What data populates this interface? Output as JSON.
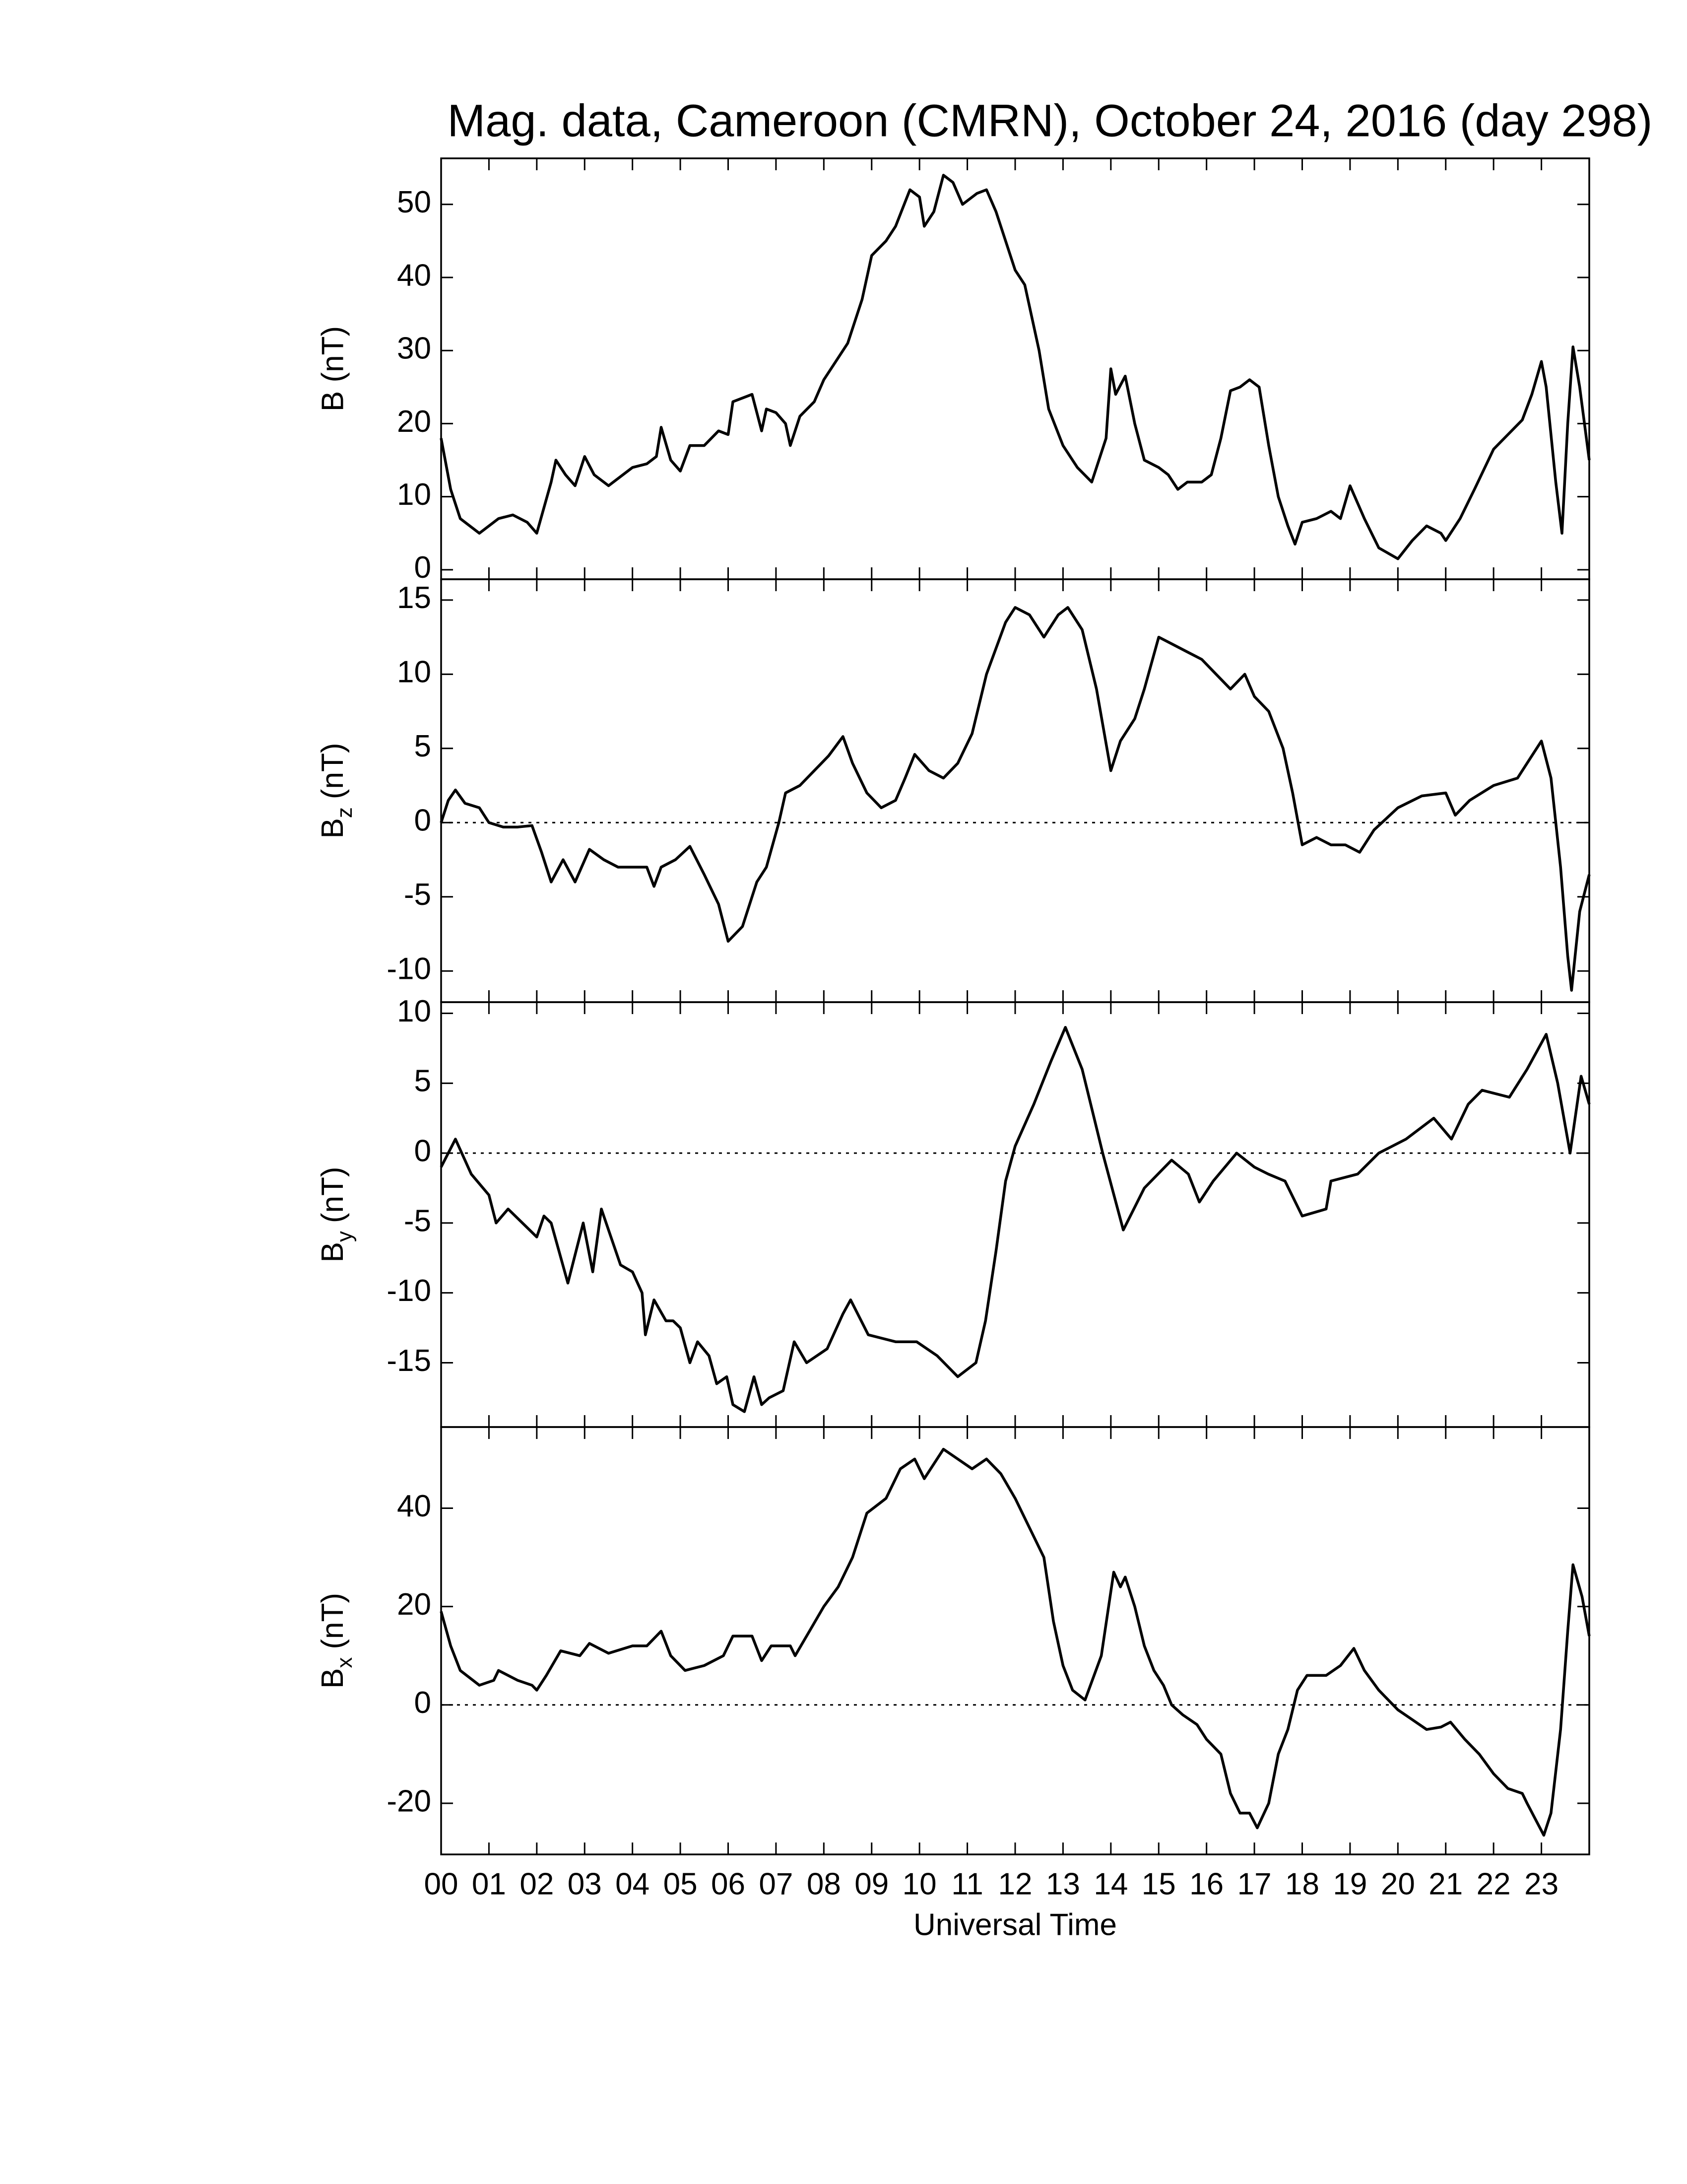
{
  "chart_data": [
    {
      "type": "line",
      "title": "Mag. data, Cameroon (CMRN), October 24, 2016 (day 298)",
      "ylabel": "B (nT)",
      "color": "#000000",
      "xlim": [
        0,
        24
      ],
      "xticks": [
        0,
        1,
        2,
        3,
        4,
        5,
        6,
        7,
        8,
        9,
        10,
        11,
        12,
        13,
        14,
        15,
        16,
        17,
        18,
        19,
        20,
        21,
        22,
        23
      ],
      "ylim": [
        -1.3,
        56.3
      ],
      "yticks": [
        0,
        10,
        20,
        30,
        40,
        50
      ],
      "x": [
        0,
        0.2,
        0.4,
        0.8,
        1.2,
        1.5,
        1.8,
        2.0,
        2.3,
        2.4,
        2.6,
        2.8,
        3.0,
        3.2,
        3.5,
        4.0,
        4.3,
        4.5,
        4.6,
        4.8,
        5.0,
        5.2,
        5.5,
        5.8,
        6.0,
        6.1,
        6.5,
        6.7,
        6.8,
        7.0,
        7.2,
        7.3,
        7.5,
        7.8,
        8.0,
        8.3,
        8.5,
        8.8,
        9.0,
        9.3,
        9.5,
        9.8,
        10.0,
        10.1,
        10.3,
        10.5,
        10.7,
        10.9,
        11.2,
        11.4,
        11.6,
        11.8,
        12.0,
        12.2,
        12.5,
        12.7,
        13.0,
        13.3,
        13.6,
        13.9,
        14.0,
        14.1,
        14.3,
        14.5,
        14.7,
        15.0,
        15.2,
        15.4,
        15.6,
        15.9,
        16.1,
        16.3,
        16.5,
        16.7,
        16.9,
        17.1,
        17.3,
        17.5,
        17.7,
        17.85,
        18.0,
        18.3,
        18.6,
        18.8,
        19.0,
        19.3,
        19.6,
        20.0,
        20.3,
        20.6,
        20.9,
        21.0,
        21.3,
        21.6,
        22.0,
        22.3,
        22.6,
        22.8,
        23.0,
        23.1,
        23.3,
        23.43,
        23.55,
        23.66,
        23.8,
        24.0
      ],
      "values": [
        18,
        11,
        7,
        5,
        7,
        7.5,
        6.5,
        5,
        12,
        15,
        13,
        11.5,
        15.5,
        13,
        11.5,
        14,
        14.5,
        15.5,
        19.5,
        15,
        13.5,
        17,
        17,
        19,
        18.5,
        23,
        24,
        19,
        22,
        21.5,
        20,
        17,
        21,
        23,
        26,
        29,
        31,
        37,
        43,
        45,
        47,
        52,
        51,
        47,
        49,
        54,
        53,
        50,
        51.5,
        52,
        49,
        45,
        41,
        39,
        30,
        22,
        17,
        14,
        12,
        18,
        27.5,
        24,
        26.5,
        20,
        15,
        14,
        13,
        11,
        12,
        12,
        13,
        18,
        24.5,
        25,
        26,
        25,
        17,
        10,
        6,
        3.5,
        6.5,
        7,
        8,
        7,
        11.5,
        7,
        3,
        1.5,
        4,
        6,
        5,
        4,
        7,
        11,
        16.5,
        18.5,
        20.5,
        24,
        28.5,
        25,
        12,
        5,
        20,
        30.5,
        25,
        15
      ]
    },
    {
      "type": "line",
      "ylabel": "B",
      "ylabel_subscript": "z",
      "ylabel_unit": "(nT)",
      "color": "#000000",
      "zero_line": true,
      "xlim": [
        0,
        24
      ],
      "xticks": [
        0,
        1,
        2,
        3,
        4,
        5,
        6,
        7,
        8,
        9,
        10,
        11,
        12,
        13,
        14,
        15,
        16,
        17,
        18,
        19,
        20,
        21,
        22,
        23
      ],
      "ylim": [
        -12.1,
        16.4
      ],
      "yticks": [
        -10,
        -5,
        0,
        5,
        10,
        15
      ],
      "x": [
        0,
        0.15,
        0.3,
        0.5,
        0.8,
        1.0,
        1.3,
        1.6,
        1.9,
        2.1,
        2.3,
        2.55,
        2.8,
        3.1,
        3.4,
        3.7,
        4.0,
        4.3,
        4.45,
        4.6,
        4.9,
        5.2,
        5.5,
        5.8,
        6.0,
        6.3,
        6.6,
        6.8,
        7.06,
        7.2,
        7.5,
        7.8,
        8.1,
        8.4,
        8.6,
        8.9,
        9.2,
        9.5,
        9.7,
        9.9,
        10.2,
        10.5,
        10.8,
        11.1,
        11.4,
        11.8,
        12.0,
        12.3,
        12.6,
        12.9,
        13.1,
        13.4,
        13.7,
        14.0,
        14.2,
        14.5,
        14.7,
        15.0,
        15.3,
        15.6,
        15.9,
        16.2,
        16.5,
        16.8,
        17.0,
        17.3,
        17.6,
        17.8,
        18.0,
        18.3,
        18.6,
        18.9,
        19.2,
        19.5,
        20.0,
        20.5,
        21.0,
        21.2,
        21.5,
        22.0,
        22.5,
        22.8,
        23.0,
        23.2,
        23.4,
        23.55,
        23.63,
        23.8,
        24.0
      ],
      "values": [
        0,
        1.5,
        2.2,
        1.3,
        1,
        0,
        -0.3,
        -0.3,
        -0.2,
        -2,
        -4,
        -2.5,
        -4,
        -1.8,
        -2.5,
        -3,
        -3,
        -3,
        -4.3,
        -3,
        -2.5,
        -1.6,
        -3.5,
        -5.5,
        -8,
        -7,
        -4,
        -3,
        0,
        2,
        2.5,
        3.5,
        4.5,
        5.8,
        4,
        2,
        1,
        1.5,
        3,
        4.6,
        3.5,
        3,
        4,
        6,
        10,
        13.5,
        14.5,
        14,
        12.5,
        14,
        14.5,
        13,
        9,
        3.5,
        5.5,
        7,
        9,
        12.5,
        12,
        11.5,
        11,
        10,
        9,
        10,
        8.5,
        7.5,
        5,
        2,
        -1.5,
        -1,
        -1.5,
        -1.5,
        -2,
        -0.5,
        1,
        1.8,
        2,
        0.5,
        1.5,
        2.5,
        3,
        4.5,
        5.5,
        3,
        -3,
        -9,
        -11.3,
        -6,
        -3.5
      ]
    },
    {
      "type": "line",
      "ylabel": "B",
      "ylabel_subscript": "y",
      "ylabel_unit": "(nT)",
      "color": "#000000",
      "zero_line": true,
      "xlim": [
        0,
        24
      ],
      "xticks": [
        0,
        1,
        2,
        3,
        4,
        5,
        6,
        7,
        8,
        9,
        10,
        11,
        12,
        13,
        14,
        15,
        16,
        17,
        18,
        19,
        20,
        21,
        22,
        23
      ],
      "ylim": [
        -19.6,
        10.8
      ],
      "yticks": [
        -15,
        -10,
        -5,
        0,
        5,
        10
      ],
      "x": [
        0,
        0.3,
        0.63,
        1.0,
        1.15,
        1.4,
        1.7,
        2.0,
        2.15,
        2.3,
        2.65,
        2.97,
        3.17,
        3.35,
        3.55,
        3.75,
        4.0,
        4.2,
        4.27,
        4.45,
        4.7,
        4.85,
        5.0,
        5.2,
        5.36,
        5.6,
        5.76,
        5.97,
        6.1,
        6.34,
        6.54,
        6.7,
        6.86,
        7.15,
        7.38,
        7.64,
        8.07,
        8.4,
        8.56,
        8.93,
        9.5,
        9.94,
        10.37,
        10.8,
        11.18,
        11.38,
        11.6,
        11.8,
        12.0,
        12.39,
        12.74,
        13.05,
        13.4,
        13.83,
        14.26,
        14.7,
        15.27,
        15.62,
        15.85,
        16.14,
        16.63,
        17.0,
        17.29,
        17.64,
        18.0,
        18.5,
        18.6,
        19.16,
        19.6,
        20.17,
        20.75,
        21.12,
        21.47,
        21.76,
        22.33,
        22.7,
        23.1,
        23.34,
        23.6,
        23.83,
        24.0
      ],
      "values": [
        -1,
        1,
        -1.5,
        -3,
        -5,
        -4,
        -5,
        -6,
        -4.5,
        -5,
        -9.3,
        -5,
        -8.5,
        -4,
        -6,
        -8,
        -8.5,
        -10,
        -13,
        -10.5,
        -12,
        -12,
        -12.5,
        -15,
        -13.5,
        -14.5,
        -16.5,
        -16,
        -18,
        -18.5,
        -16,
        -18,
        -17.5,
        -17,
        -13.5,
        -15,
        -14,
        -11.5,
        -10.5,
        -13,
        -13.5,
        -13.5,
        -14.5,
        -16,
        -15,
        -12,
        -7,
        -2,
        0.5,
        3.5,
        6.5,
        9,
        6,
        0,
        -5.5,
        -2.5,
        -0.5,
        -1.5,
        -3.5,
        -2,
        0,
        -1,
        -1.5,
        -2,
        -4.5,
        -4,
        -2,
        -1.5,
        0,
        1,
        2.5,
        1,
        3.5,
        4.5,
        4,
        6,
        8.5,
        5,
        0,
        5.5,
        3.5
      ]
    },
    {
      "type": "line",
      "ylabel": "B",
      "ylabel_subscript": "x",
      "ylabel_unit": "(nT)",
      "xlabel": "Universal Time",
      "color": "#000000",
      "zero_line": true,
      "xlim": [
        0,
        24
      ],
      "xticks": [
        {
          "value": 0,
          "label": "00"
        },
        {
          "value": 1,
          "label": "01"
        },
        {
          "value": 2,
          "label": "02"
        },
        {
          "value": 3,
          "label": "03"
        },
        {
          "value": 4,
          "label": "04"
        },
        {
          "value": 5,
          "label": "05"
        },
        {
          "value": 6,
          "label": "06"
        },
        {
          "value": 7,
          "label": "07"
        },
        {
          "value": 8,
          "label": "08"
        },
        {
          "value": 9,
          "label": "09"
        },
        10,
        11,
        12,
        13,
        14,
        15,
        16,
        17,
        18,
        19,
        20,
        21,
        22,
        23
      ],
      "ylim": [
        -30.4,
        56.5
      ],
      "yticks": [
        -20,
        0,
        20,
        40
      ],
      "x": [
        0,
        0.2,
        0.4,
        0.8,
        1.1,
        1.2,
        1.6,
        1.9,
        2.0,
        2.2,
        2.5,
        2.9,
        3.1,
        3.5,
        4.0,
        4.3,
        4.6,
        4.8,
        5.1,
        5.5,
        5.9,
        6.1,
        6.5,
        6.7,
        6.9,
        7.3,
        7.4,
        7.7,
        8.0,
        8.3,
        8.6,
        8.9,
        9.3,
        9.6,
        9.9,
        10.1,
        10.5,
        10.8,
        11.1,
        11.4,
        11.7,
        12.0,
        12.3,
        12.6,
        12.8,
        13.0,
        13.2,
        13.46,
        13.8,
        14.06,
        14.2,
        14.3,
        14.5,
        14.7,
        14.9,
        15.1,
        15.27,
        15.5,
        15.8,
        16.0,
        16.3,
        16.5,
        16.7,
        16.9,
        17.06,
        17.3,
        17.5,
        17.7,
        17.9,
        18.1,
        18.5,
        18.8,
        19.08,
        19.3,
        19.6,
        20.0,
        20.3,
        20.6,
        20.9,
        21.1,
        21.4,
        21.7,
        22.0,
        22.3,
        22.6,
        22.7,
        23.05,
        23.2,
        23.4,
        23.55,
        23.66,
        23.85,
        24.0
      ],
      "values": [
        19,
        12,
        7,
        4,
        5,
        7,
        5,
        4,
        3,
        6,
        11,
        10,
        12.5,
        10.5,
        12,
        12,
        15,
        10,
        7,
        8,
        10,
        14,
        14,
        9,
        12,
        12,
        10,
        15,
        20,
        24,
        30,
        39,
        42,
        48,
        50,
        46,
        52,
        50,
        48,
        50,
        47,
        42,
        36,
        30,
        17,
        8,
        3,
        1,
        10,
        27,
        24,
        26,
        20,
        12,
        7,
        4,
        0,
        -2,
        -4,
        -7,
        -10,
        -18,
        -22,
        -22,
        -25,
        -20,
        -10,
        -5,
        3,
        6,
        6,
        8,
        11.5,
        7,
        3,
        -1,
        -3,
        -5,
        -4.5,
        -3.5,
        -7,
        -10,
        -14,
        -17,
        -18,
        -20,
        -26.5,
        -22,
        -5,
        15,
        28.5,
        22,
        14
      ]
    }
  ]
}
